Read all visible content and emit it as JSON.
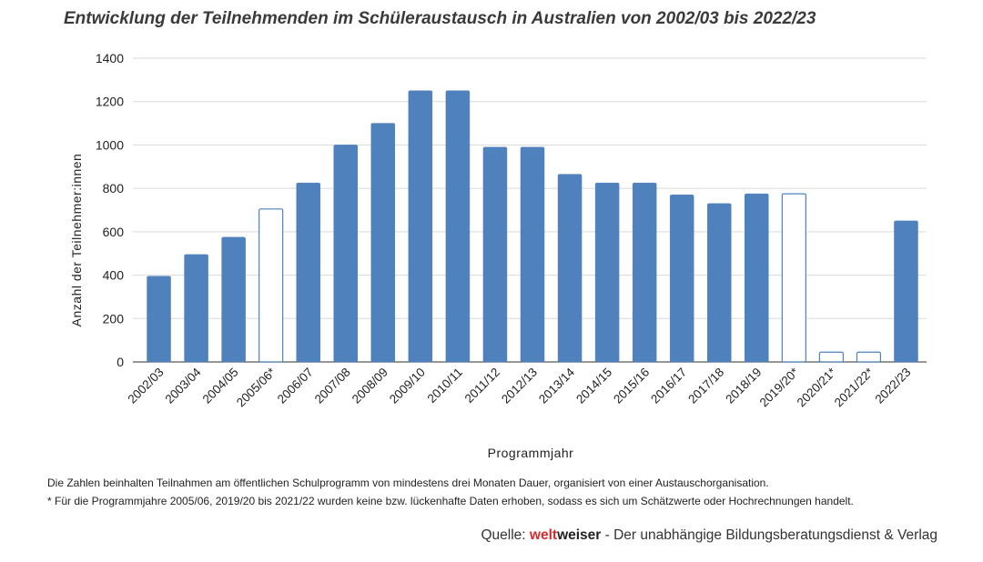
{
  "page": {
    "title": "Entwicklung der Teilnehmenden im Schüleraustausch in Australien von 2002/03 bis 2022/23",
    "note1": "Die Zahlen beinhalten Teilnahmen am öffentlichen Schulprogramm von mindestens drei Monaten Dauer, organisiert von einer Austauschorganisation.",
    "note2": "* Für die Programmjahre 2005/06, 2019/20 bis 2021/22 wurden keine bzw. lückenhafte Daten erhoben, sodass es sich um Schätzwerte oder Hochrechnungen handelt.",
    "source_prefix": "Quelle: ",
    "source_brand_a": "welt",
    "source_brand_b": "weiser",
    "source_suffix": " - Der unabhängige Bildungsberatungsdienst & Verlag"
  },
  "chart_data": {
    "type": "bar",
    "title": "Entwicklung der Teilnehmenden im Schüleraustausch in Australien von 2002/03 bis 2022/23",
    "xlabel": "Programmjahr",
    "ylabel": "Anzahl der Teilnehmer:innen",
    "ylim": [
      0,
      1400
    ],
    "yticks": [
      0,
      200,
      400,
      600,
      800,
      1000,
      1200,
      1400
    ],
    "grid": true,
    "categories": [
      "2002/03",
      "2003/04",
      "2004/05",
      "2005/06*",
      "2006/07",
      "2007/08",
      "2008/09",
      "2009/10",
      "2010/11",
      "2011/12",
      "2012/13",
      "2013/14",
      "2014/15",
      "2015/16",
      "2016/17",
      "2017/18",
      "2018/19",
      "2019/20*",
      "2020/21*",
      "2021/22*",
      "2022/23"
    ],
    "values": [
      395,
      495,
      575,
      705,
      825,
      1000,
      1100,
      1250,
      1250,
      990,
      990,
      865,
      825,
      825,
      770,
      730,
      775,
      775,
      45,
      45,
      650
    ],
    "estimated": [
      false,
      false,
      false,
      true,
      false,
      false,
      false,
      false,
      false,
      false,
      false,
      false,
      false,
      false,
      false,
      false,
      false,
      true,
      true,
      true,
      false
    ],
    "colors": {
      "bar": "#4f81bd",
      "estimated_fill": "#ffffff",
      "estimated_stroke": "#4f81bd",
      "grid": "#d9d9d9",
      "axis": "#595959"
    }
  }
}
